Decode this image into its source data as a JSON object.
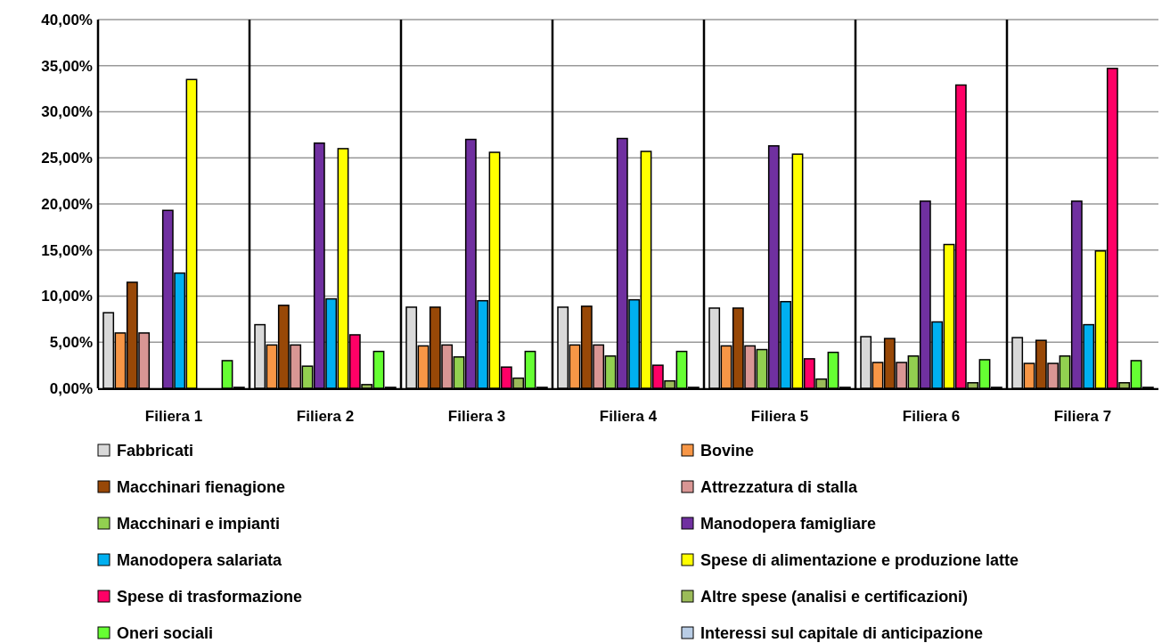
{
  "chart_data": {
    "type": "bar",
    "categories": [
      "Filiera 1",
      "Filiera 2",
      "Filiera 3",
      "Filiera 4",
      "Filiera 5",
      "Filiera 6",
      "Filiera 7"
    ],
    "series": [
      {
        "name": "Fabbricati",
        "color": "#d9d9d9",
        "values": [
          8.2,
          6.9,
          8.8,
          8.8,
          8.7,
          5.6,
          5.5
        ]
      },
      {
        "name": "Bovine",
        "color": "#f79646",
        "values": [
          6.0,
          4.7,
          4.6,
          4.7,
          4.6,
          2.8,
          2.7
        ]
      },
      {
        "name": "Macchinari fienagione",
        "color": "#984807",
        "values": [
          11.5,
          9.0,
          8.8,
          8.9,
          8.7,
          5.4,
          5.2
        ]
      },
      {
        "name": "Attrezzatura di stalla",
        "color": "#d99694",
        "values": [
          6.0,
          4.7,
          4.7,
          4.7,
          4.6,
          2.8,
          2.7
        ]
      },
      {
        "name": "Macchinari e impianti",
        "color": "#92d050",
        "values": [
          0,
          2.4,
          3.4,
          3.5,
          4.2,
          3.5,
          3.5
        ]
      },
      {
        "name": "Manodopera famigliare",
        "color": "#7030a0",
        "values": [
          19.3,
          26.6,
          27.0,
          27.1,
          26.3,
          20.3,
          20.3
        ]
      },
      {
        "name": "Manodopera salariata",
        "color": "#00b0f0",
        "values": [
          12.5,
          9.7,
          9.5,
          9.6,
          9.4,
          7.2,
          6.9
        ]
      },
      {
        "name": "Spese di alimentazione e produzione latte",
        "color": "#ffff00",
        "values": [
          33.5,
          26.0,
          25.6,
          25.7,
          25.4,
          15.6,
          14.9
        ]
      },
      {
        "name": "Spese di trasformazione",
        "color": "#ff0066",
        "values": [
          0,
          5.8,
          2.3,
          2.5,
          3.2,
          32.9,
          34.7
        ]
      },
      {
        "name": "Altre spese (analisi e certificazioni)",
        "color": "#9bbb59",
        "values": [
          0,
          0.4,
          1.1,
          0.8,
          1.0,
          0.6,
          0.6
        ]
      },
      {
        "name": "Oneri sociali",
        "color": "#66ff33",
        "values": [
          3.0,
          4.0,
          4.0,
          4.0,
          3.9,
          3.1,
          3.0
        ]
      },
      {
        "name": "Interessi sul capitale di anticipazione",
        "color": "#b9cde5",
        "values": [
          0.1,
          0.1,
          0.1,
          0.1,
          0.1,
          0.1,
          0.1
        ]
      }
    ],
    "ylim": [
      0,
      40
    ],
    "yticks": [
      {
        "value": 0,
        "label": "0,00%"
      },
      {
        "value": 5,
        "label": "5,00%"
      },
      {
        "value": 10,
        "label": "10,00%"
      },
      {
        "value": 15,
        "label": "15,00%"
      },
      {
        "value": 20,
        "label": "20,00%"
      },
      {
        "value": 25,
        "label": "25,00%"
      },
      {
        "value": 30,
        "label": "30,00%"
      },
      {
        "value": 35,
        "label": "35,00%"
      },
      {
        "value": 40,
        "label": "40,00%"
      }
    ],
    "grid": "y",
    "legend": "bottom"
  }
}
